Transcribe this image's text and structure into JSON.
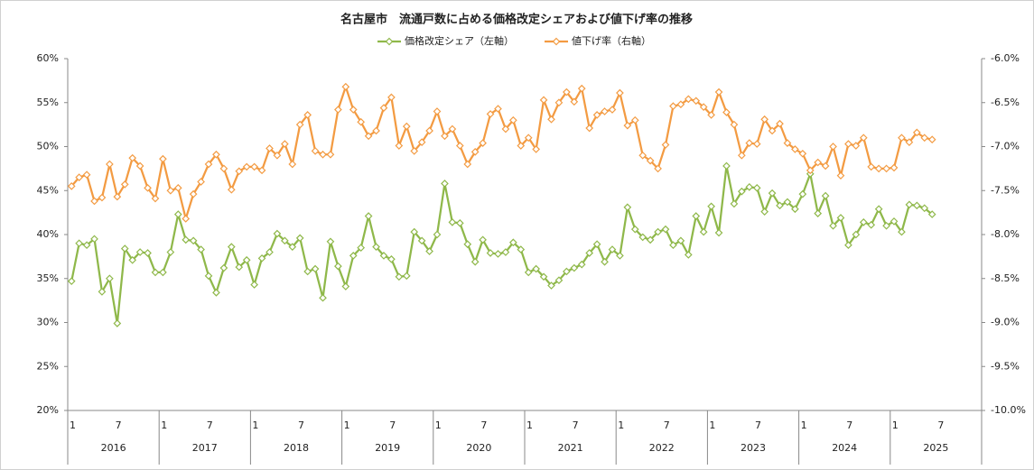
{
  "chart_data": {
    "type": "line",
    "title": "名古屋市　流通戸数に占める価格改定シェアおよび値下げ率の推移",
    "categories": [
      "1",
      null,
      null,
      null,
      null,
      null,
      "7",
      null,
      null,
      null,
      null,
      null,
      "1",
      null,
      null,
      null,
      null,
      null,
      "7",
      null,
      null,
      null,
      null,
      null,
      "1",
      null,
      null,
      null,
      null,
      null,
      "7",
      null,
      null,
      null,
      null,
      null,
      "1",
      null,
      null,
      null,
      null,
      null,
      "7",
      null,
      null,
      null,
      null,
      null,
      "1",
      null,
      null,
      null,
      null,
      null,
      "7",
      null,
      null,
      null,
      null,
      null,
      "1",
      null,
      null,
      null,
      null,
      null,
      "7",
      null,
      null,
      null,
      null,
      null,
      "1",
      null,
      null,
      null,
      null,
      null,
      "7",
      null,
      null,
      null,
      null,
      null,
      "1",
      null,
      null,
      null,
      null,
      null,
      "7",
      null,
      null,
      null,
      null,
      null,
      "1",
      null,
      null,
      null,
      null,
      null,
      "7",
      null,
      null,
      null,
      null,
      null,
      "1",
      null,
      null,
      null,
      null,
      null,
      "7",
      null,
      null,
      null,
      null,
      null
    ],
    "years": [
      "2016",
      "2017",
      "2018",
      "2019",
      "2020",
      "2021",
      "2022",
      "2023",
      "2024",
      "2025"
    ],
    "series": [
      {
        "name": "価格改定シェア（左軸）",
        "color": "#8fb84a",
        "axis": "y",
        "values": [
          34.7,
          39.0,
          38.8,
          39.5,
          33.5,
          35.0,
          29.9,
          38.4,
          37.1,
          38.0,
          37.9,
          35.7,
          35.7,
          38.0,
          42.3,
          39.4,
          39.3,
          38.3,
          35.3,
          33.4,
          36.2,
          38.6,
          36.3,
          37.1,
          34.3,
          37.3,
          38.0,
          40.1,
          39.3,
          38.6,
          39.6,
          35.8,
          36.1,
          32.8,
          39.2,
          36.4,
          34.1,
          37.6,
          38.5,
          42.1,
          38.6,
          37.6,
          37.2,
          35.2,
          35.3,
          40.3,
          39.3,
          38.1,
          40.0,
          45.8,
          41.4,
          41.3,
          38.9,
          36.9,
          39.4,
          37.9,
          37.8,
          38.0,
          39.1,
          38.3,
          35.7,
          36.1,
          35.2,
          34.2,
          34.8,
          35.8,
          36.2,
          36.6,
          37.9,
          38.9,
          36.9,
          38.3,
          37.6,
          43.1,
          40.6,
          39.7,
          39.4,
          40.3,
          40.6,
          38.8,
          39.3,
          37.7,
          42.1,
          40.3,
          43.2,
          40.2,
          47.8,
          43.5,
          44.9,
          45.4,
          45.3,
          42.6,
          44.7,
          43.3,
          43.7,
          42.9,
          44.6,
          46.9,
          42.4,
          44.4,
          41.0,
          41.9,
          38.8,
          40.0,
          41.4,
          41.1,
          42.9,
          41.0,
          41.5,
          40.3,
          43.4,
          43.3,
          43.0,
          42.3,
          null,
          null,
          null,
          null,
          null,
          null
        ]
      },
      {
        "name": "値下げ率（右軸）",
        "color": "#f39b42",
        "axis": "y2",
        "values": [
          -7.45,
          -7.35,
          -7.32,
          -7.62,
          -7.58,
          -7.2,
          -7.57,
          -7.43,
          -7.13,
          -7.22,
          -7.47,
          -7.59,
          -7.14,
          -7.5,
          -7.47,
          -7.82,
          -7.54,
          -7.4,
          -7.2,
          -7.09,
          -7.25,
          -7.49,
          -7.28,
          -7.23,
          -7.23,
          -7.27,
          -7.02,
          -7.1,
          -6.97,
          -7.2,
          -6.75,
          -6.64,
          -7.05,
          -7.09,
          -7.09,
          -6.58,
          -6.32,
          -6.58,
          -6.72,
          -6.88,
          -6.82,
          -6.56,
          -6.44,
          -6.99,
          -6.77,
          -7.05,
          -6.95,
          -6.82,
          -6.6,
          -6.88,
          -6.8,
          -6.99,
          -7.2,
          -7.06,
          -6.96,
          -6.63,
          -6.57,
          -6.8,
          -6.7,
          -6.99,
          -6.9,
          -7.03,
          -6.47,
          -6.69,
          -6.5,
          -6.38,
          -6.49,
          -6.34,
          -6.79,
          -6.64,
          -6.6,
          -6.58,
          -6.39,
          -6.76,
          -6.7,
          -7.1,
          -7.16,
          -7.25,
          -6.98,
          -6.54,
          -6.52,
          -6.46,
          -6.48,
          -6.55,
          -6.64,
          -6.38,
          -6.61,
          -6.75,
          -7.1,
          -6.96,
          -6.97,
          -6.69,
          -6.82,
          -6.74,
          -6.96,
          -7.03,
          -7.08,
          -7.27,
          -7.18,
          -7.22,
          -7.0,
          -7.33,
          -6.97,
          -6.99,
          -6.9,
          -7.23,
          -7.25,
          -7.25,
          -7.24,
          -6.9,
          -6.95,
          -6.84,
          -6.9,
          -6.92,
          null,
          null,
          null,
          null,
          null,
          null
        ]
      }
    ],
    "ylim": [
      20,
      60
    ],
    "yticks": [
      {
        "value": 20,
        "label": "20%"
      },
      {
        "value": 25,
        "label": "25%"
      },
      {
        "value": 30,
        "label": "30%"
      },
      {
        "value": 35,
        "label": "35%"
      },
      {
        "value": 40,
        "label": "40%"
      },
      {
        "value": 45,
        "label": "45%"
      },
      {
        "value": 50,
        "label": "50%"
      },
      {
        "value": 55,
        "label": "55%"
      },
      {
        "value": 60,
        "label": "60%"
      }
    ],
    "y2lim": [
      -10,
      -6
    ],
    "y2ticks": [
      {
        "value": -10,
        "label": "-10.0%"
      },
      {
        "value": -9.5,
        "label": "-9.5%"
      },
      {
        "value": -9,
        "label": "-9.0%"
      },
      {
        "value": -8.5,
        "label": "-8.5%"
      },
      {
        "value": -8,
        "label": "-8.0%"
      },
      {
        "value": -7.5,
        "label": "-7.5%"
      },
      {
        "value": -7,
        "label": "-7.0%"
      },
      {
        "value": -6.5,
        "label": "-6.5%"
      },
      {
        "value": -6,
        "label": "-6.0%"
      }
    ],
    "grid": false,
    "legend": "top"
  }
}
